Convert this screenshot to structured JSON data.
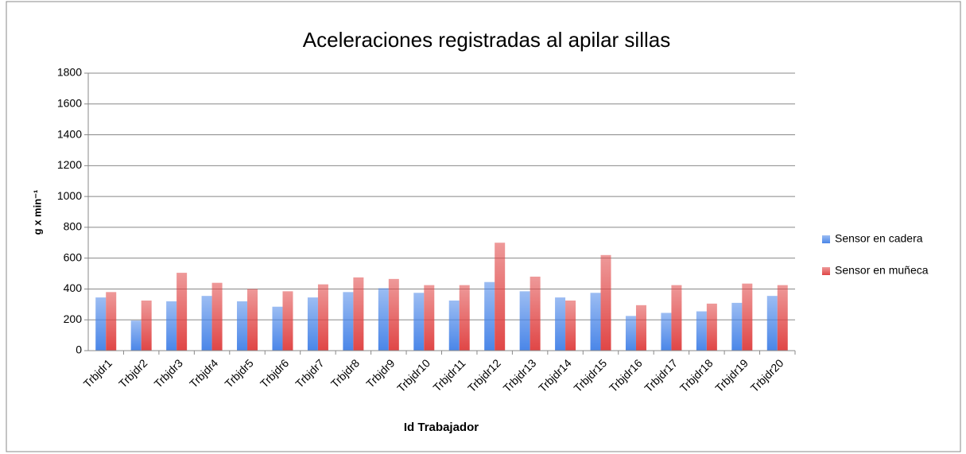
{
  "chart_data": {
    "type": "bar",
    "title": "Aceleraciones registradas al apilar sillas",
    "x_label": "Id Trabajador",
    "y_label": "g x min⁻¹",
    "categories": [
      "Trbjdr1",
      "Trbjdr2",
      "Trbjdr3",
      "Trbjdr4",
      "Trbjdr5",
      "Trbjdr6",
      "Trbjdr7",
      "Trbjdr8",
      "Trbjdr9",
      "Trbjdr10",
      "Trbjdr11",
      "Trbjdr12",
      "Trbjdr13",
      "Trbjdr14",
      "Trbjdr15",
      "Trbjdr16",
      "Trbjdr17",
      "Trbjdr18",
      "Trbjdr19",
      "Trbjdr20"
    ],
    "series": [
      {
        "name": "Sensor en cadera",
        "color": "#4a86e8",
        "values": [
          345,
          195,
          320,
          355,
          320,
          285,
          345,
          380,
          405,
          375,
          325,
          445,
          385,
          345,
          375,
          225,
          245,
          255,
          310,
          355
        ]
      },
      {
        "name": "Sensor en muñeca",
        "color": "#e04646",
        "values": [
          380,
          325,
          505,
          440,
          400,
          385,
          430,
          475,
          465,
          425,
          425,
          700,
          480,
          325,
          620,
          295,
          425,
          305,
          435,
          425
        ]
      }
    ],
    "ylim": [
      0,
      1800
    ],
    "yticks": [
      0,
      200,
      400,
      600,
      800,
      1000,
      1200,
      1400,
      1600,
      1800
    ],
    "grid": true,
    "legend": "right"
  }
}
